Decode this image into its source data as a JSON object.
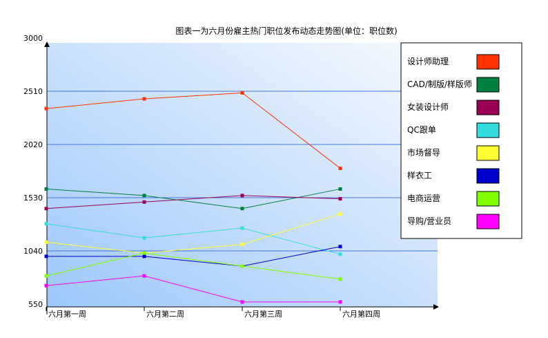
{
  "chart_data": {
    "type": "line",
    "title": "图表一为六月份雇主热门职位发布动态走势图(单位：职位数)",
    "categories": [
      "六月第一周",
      "六月第二周",
      "六月第三周",
      "六月第四周"
    ],
    "yticks": [
      "3000",
      "2510",
      "2020",
      "1530",
      "1040",
      "550"
    ],
    "ylim": [
      550,
      3000
    ],
    "grid": true,
    "legend_position": "right",
    "series": [
      {
        "name": "设计师助理",
        "color": "#ff3300",
        "values": [
          2350,
          2440,
          2495,
          1800
        ]
      },
      {
        "name": "CAD/制版/样版师",
        "color": "#008040",
        "values": [
          1610,
          1550,
          1430,
          1610
        ]
      },
      {
        "name": "女装设计师",
        "color": "#990055",
        "values": [
          1430,
          1490,
          1550,
          1520
        ]
      },
      {
        "name": "QC跟单",
        "color": "#33dddd",
        "values": [
          1290,
          1160,
          1250,
          1010
        ]
      },
      {
        "name": "市场督导",
        "color": "#ffff33",
        "values": [
          1120,
          1020,
          1100,
          1380
        ]
      },
      {
        "name": "样衣工",
        "color": "#0000cc",
        "values": [
          990,
          990,
          900,
          1080
        ]
      },
      {
        "name": "电商运营",
        "color": "#80ff00",
        "values": [
          810,
          1020,
          900,
          780
        ]
      },
      {
        "name": "导购/营业员",
        "color": "#ff00ff",
        "values": [
          720,
          810,
          570,
          570
        ]
      }
    ]
  }
}
